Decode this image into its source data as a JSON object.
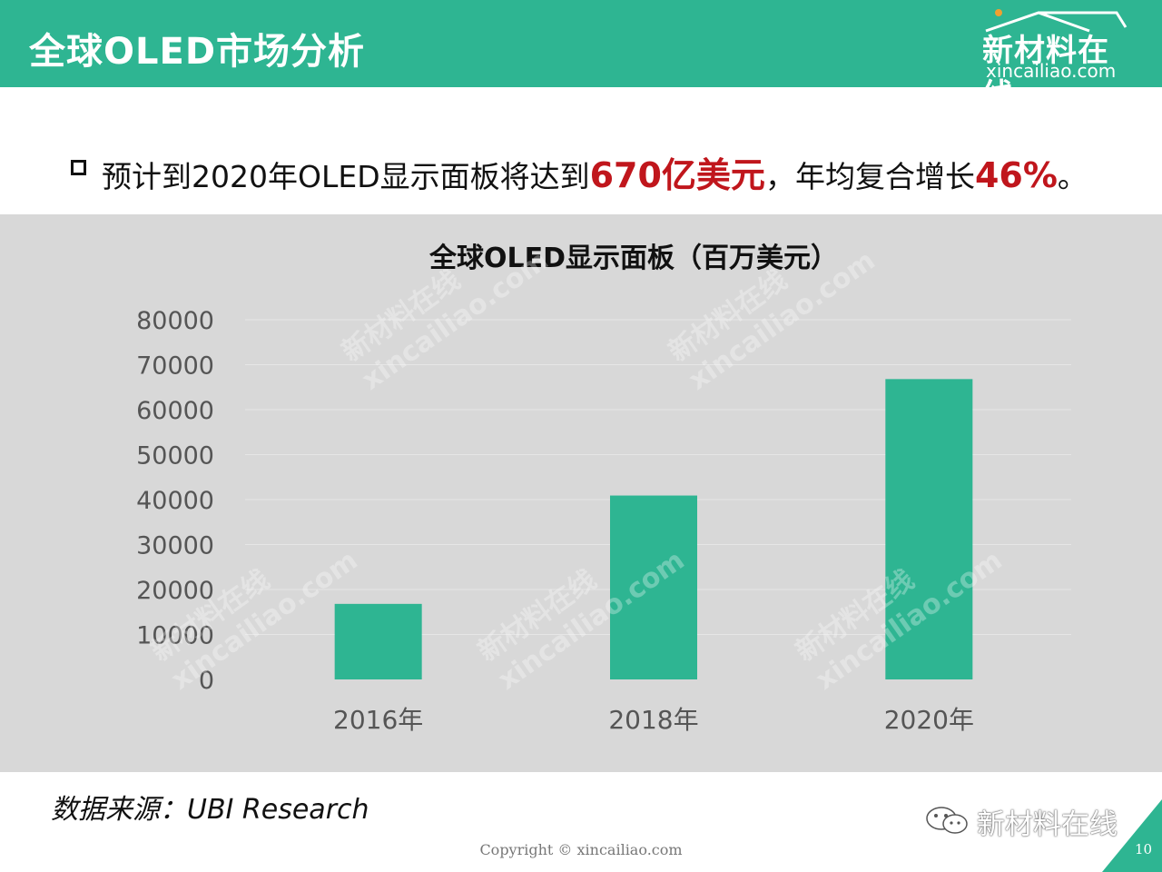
{
  "header": {
    "title": "全球OLED市场分析"
  },
  "logo": {
    "name": "新材料在线",
    "url": "xincailiao.com"
  },
  "bullet": {
    "prefix": "预计到2020年OLED显示面板将达到",
    "value1": "670亿美元",
    "mid": "，年均复合增长",
    "value2": "46%",
    "suffix": "。"
  },
  "chart_data": {
    "type": "bar",
    "title": "全球OLED显示面板（百万美元）",
    "categories": [
      "2016年",
      "2018年",
      "2020年"
    ],
    "values": [
      16800,
      40900,
      66800
    ],
    "ylim": [
      0,
      80000
    ],
    "yticks": [
      "0",
      "10000",
      "20000",
      "30000",
      "40000",
      "50000",
      "60000",
      "70000",
      "80000"
    ],
    "grid": true,
    "bar_color": "#2eb592",
    "background": "#d8d8d8"
  },
  "watermarks": [
    "新材料在线",
    "xincailiao.com"
  ],
  "footer": {
    "source": "数据来源：UBI Research",
    "copyright": "Copyright © xincailiao.com",
    "brand": "新材料在线",
    "page": "10"
  },
  "colors": {
    "accent": "#2eb592",
    "highlight": "#c0161c"
  }
}
